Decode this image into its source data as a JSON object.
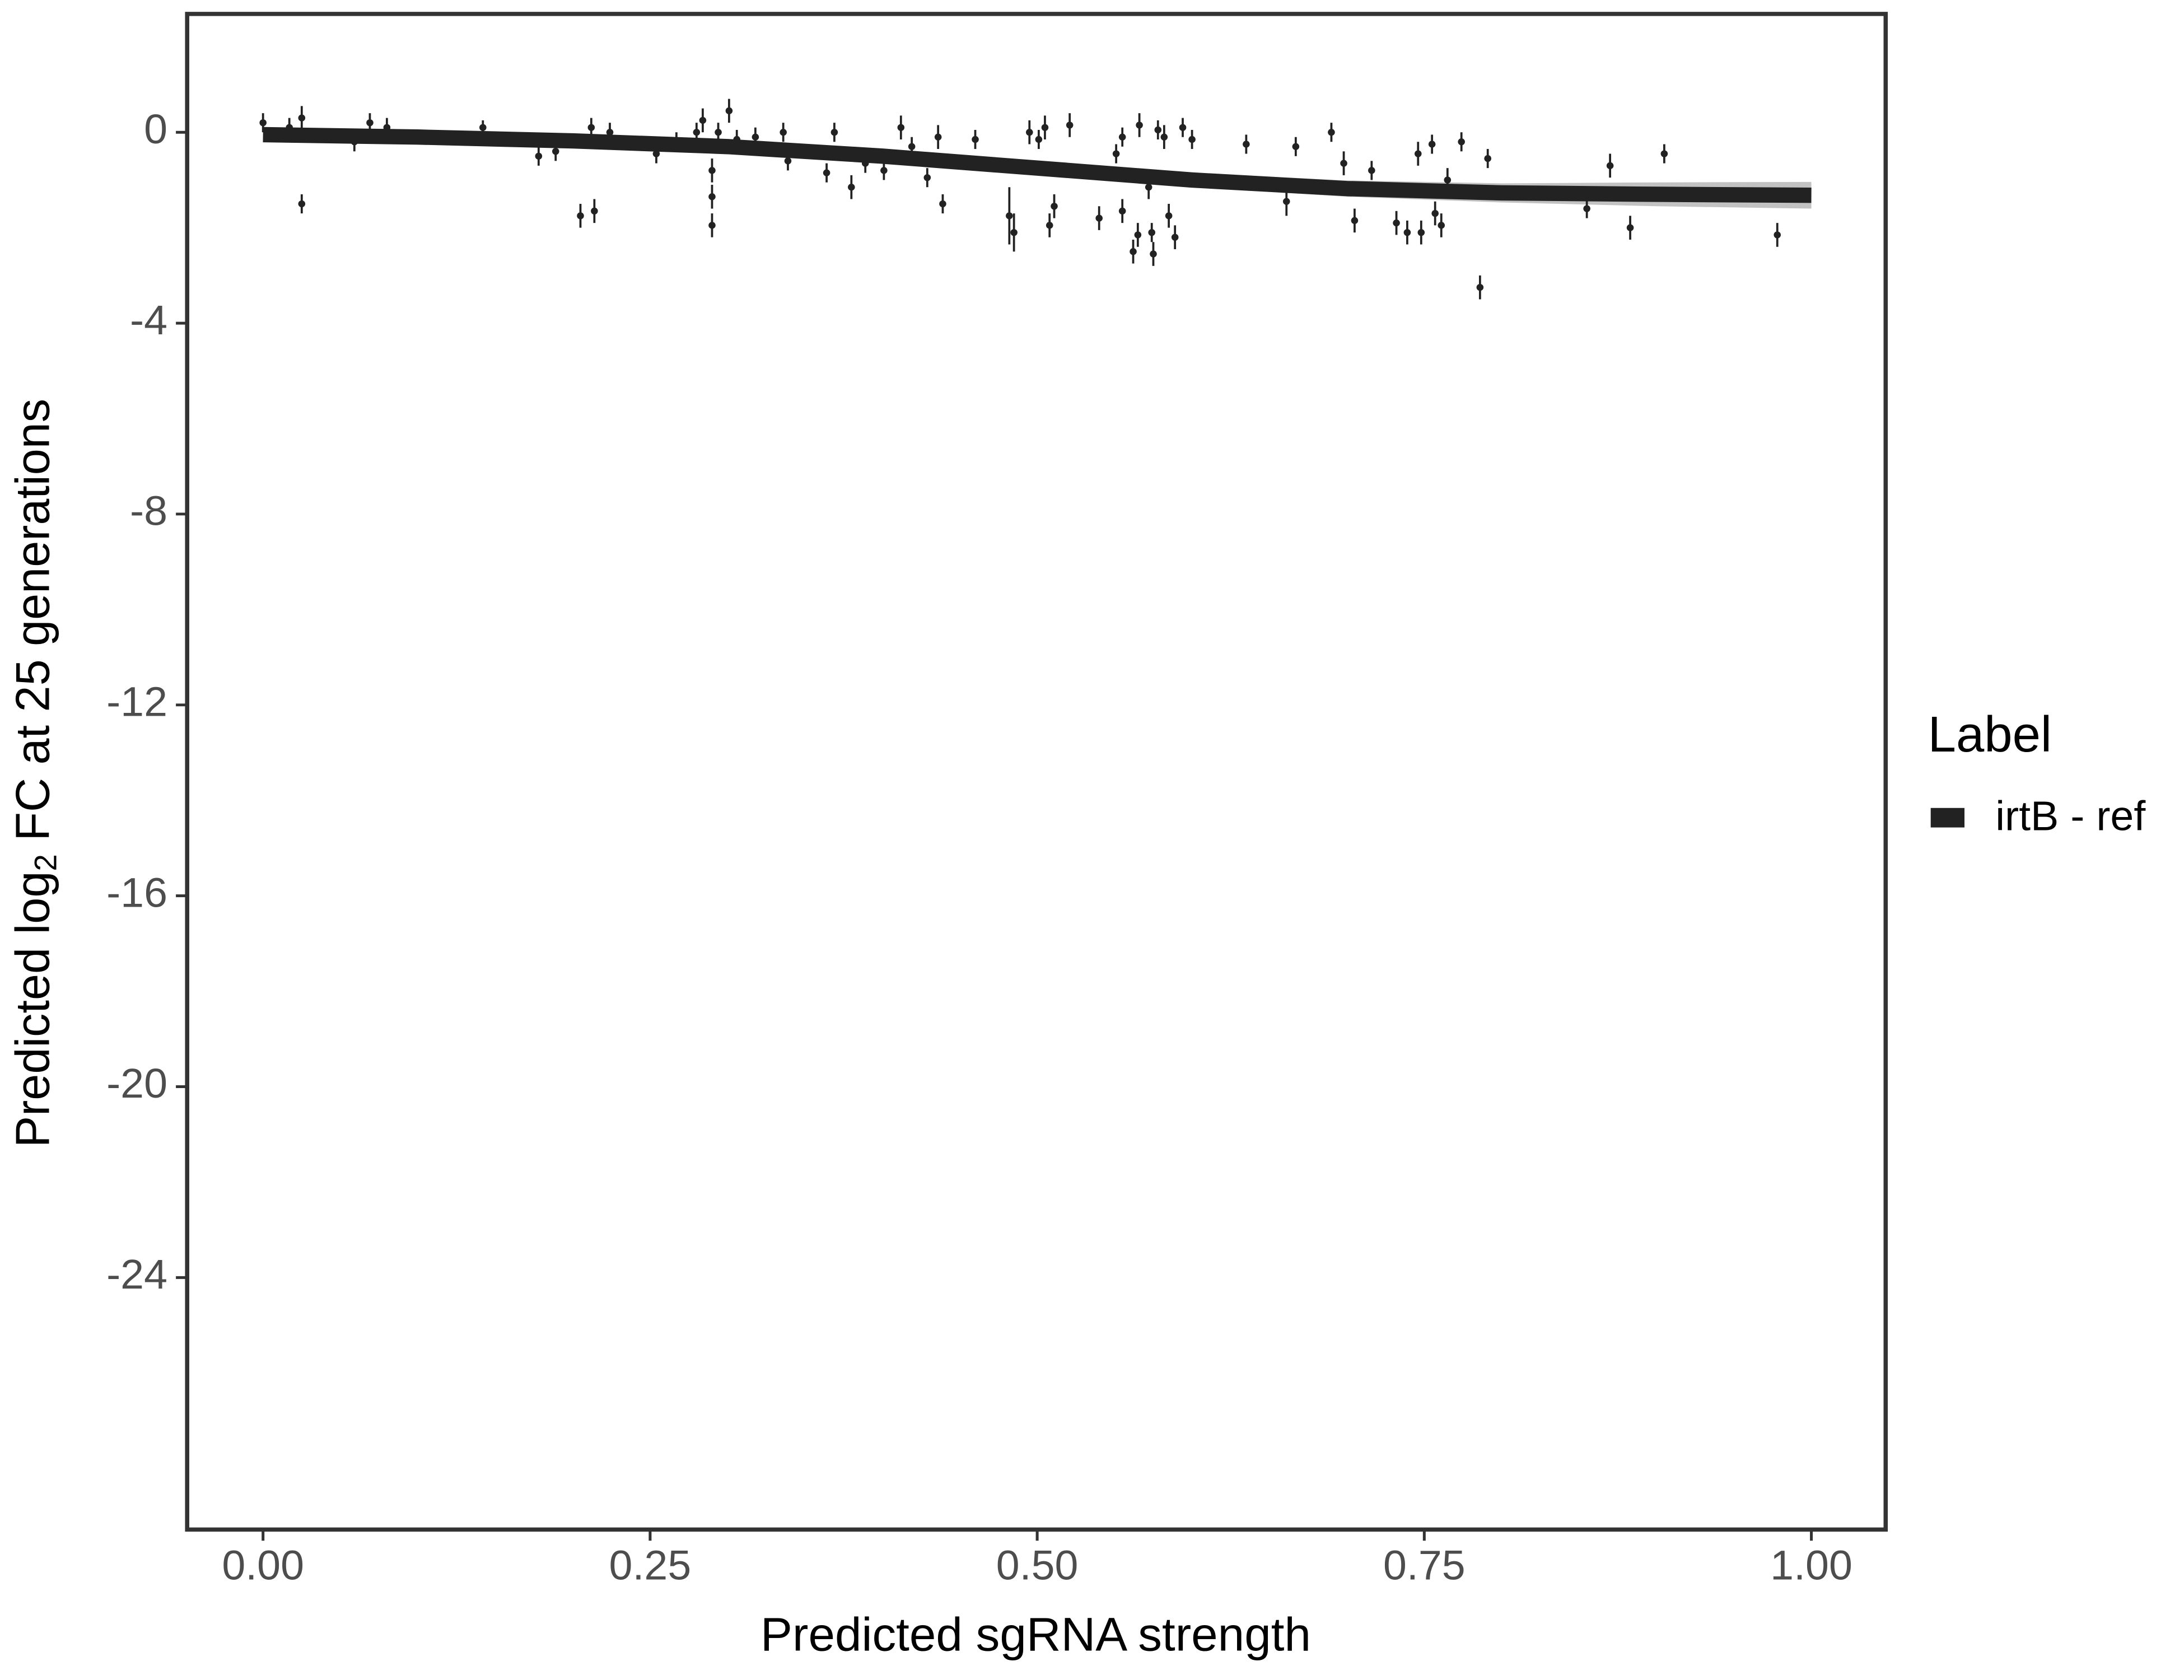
{
  "chart_data": {
    "type": "scatter",
    "xlabel": "Predicted sgRNA strength",
    "ylabel": {
      "prefix": "Predicted  log",
      "sub": "2",
      "suffix": " FC at 25 generations"
    },
    "xlim": [
      -0.049,
      1.048
    ],
    "ylim": [
      -29.28,
      2.48
    ],
    "xticks": [
      {
        "value": 0,
        "label": "0.00"
      },
      {
        "value": 0.25,
        "label": "0.25"
      },
      {
        "value": 0.5,
        "label": "0.50"
      },
      {
        "value": 0.75,
        "label": "0.75"
      },
      {
        "value": 1,
        "label": "1.00"
      }
    ],
    "yticks": [
      0,
      -4,
      -8,
      -12,
      -16,
      -20,
      -24
    ],
    "legend_title": "Label",
    "series": [
      {
        "name": "irtB - ref",
        "color": "#222222",
        "x": [
          0.0,
          0.017,
          0.025,
          0.025,
          0.059,
          0.069,
          0.08,
          0.142,
          0.178,
          0.189,
          0.205,
          0.212,
          0.214,
          0.224,
          0.254,
          0.267,
          0.28,
          0.284,
          0.29,
          0.29,
          0.29,
          0.294,
          0.301,
          0.306,
          0.318,
          0.336,
          0.339,
          0.364,
          0.369,
          0.38,
          0.389,
          0.401,
          0.412,
          0.419,
          0.429,
          0.436,
          0.439,
          0.46,
          0.482,
          0.485,
          0.495,
          0.501,
          0.505,
          0.508,
          0.511,
          0.521,
          0.54,
          0.551,
          0.555,
          0.555,
          0.562,
          0.566,
          0.565,
          0.572,
          0.574,
          0.575,
          0.578,
          0.582,
          0.585,
          0.589,
          0.594,
          0.6,
          0.635,
          0.661,
          0.667,
          0.69,
          0.698,
          0.705,
          0.716,
          0.732,
          0.739,
          0.746,
          0.748,
          0.755,
          0.757,
          0.761,
          0.765,
          0.774,
          0.786,
          0.791,
          0.855,
          0.87,
          0.883,
          0.905,
          0.978
        ],
        "values": [
          0.2,
          0.1,
          0.3,
          -1.5,
          -0.2,
          0.2,
          0.1,
          0.1,
          -0.5,
          -0.4,
          -1.75,
          0.1,
          -1.65,
          0.0,
          -0.45,
          -0.2,
          0.0,
          0.25,
          -0.8,
          -1.35,
          -1.95,
          0.0,
          0.45,
          -0.15,
          -0.1,
          0.0,
          -0.6,
          -0.85,
          0.0,
          -1.15,
          -0.65,
          -0.8,
          0.1,
          -0.3,
          -0.95,
          -0.1,
          -1.5,
          -0.15,
          -1.75,
          -2.1,
          0.0,
          -0.15,
          0.1,
          -1.95,
          -1.55,
          0.15,
          -1.8,
          -0.45,
          -0.1,
          -1.65,
          -2.5,
          0.15,
          -2.15,
          -1.15,
          -2.1,
          -2.55,
          0.05,
          -0.1,
          -1.75,
          -2.2,
          0.1,
          -0.15,
          -0.25,
          -1.45,
          -0.3,
          0.0,
          -0.65,
          -1.85,
          -0.8,
          -1.9,
          -2.1,
          -0.45,
          -2.1,
          -0.25,
          -1.7,
          -1.95,
          -1.0,
          -0.2,
          -3.25,
          -0.55,
          -1.6,
          -0.7,
          -2.0,
          -0.45,
          -2.15
        ],
        "errors": [
          0.2,
          0.2,
          0.25,
          0.2,
          0.2,
          0.2,
          0.2,
          0.15,
          0.2,
          0.2,
          0.25,
          0.2,
          0.25,
          0.2,
          0.2,
          0.2,
          0.2,
          0.25,
          0.25,
          0.25,
          0.25,
          0.2,
          0.25,
          0.2,
          0.2,
          0.2,
          0.2,
          0.2,
          0.2,
          0.25,
          0.2,
          0.2,
          0.25,
          0.2,
          0.2,
          0.25,
          0.2,
          0.2,
          0.6,
          0.4,
          0.25,
          0.2,
          0.25,
          0.25,
          0.25,
          0.25,
          0.25,
          0.2,
          0.2,
          0.25,
          0.25,
          0.25,
          0.25,
          0.25,
          0.2,
          0.25,
          0.2,
          0.25,
          0.25,
          0.25,
          0.2,
          0.2,
          0.2,
          0.3,
          0.2,
          0.2,
          0.25,
          0.25,
          0.2,
          0.25,
          0.25,
          0.25,
          0.25,
          0.2,
          0.25,
          0.25,
          0.25,
          0.2,
          0.25,
          0.2,
          0.2,
          0.25,
          0.25,
          0.2,
          0.25
        ]
      }
    ],
    "fit": {
      "x": [
        0,
        0.1,
        0.2,
        0.3,
        0.4,
        0.5,
        0.6,
        0.7,
        0.8,
        0.9,
        1.0
      ],
      "y": [
        -0.05,
        -0.1,
        -0.18,
        -0.3,
        -0.5,
        -0.75,
        -1.0,
        -1.18,
        -1.27,
        -1.3,
        -1.32
      ],
      "lower": [
        -0.2,
        -0.2,
        -0.28,
        -0.4,
        -0.6,
        -0.88,
        -1.15,
        -1.35,
        -1.47,
        -1.55,
        -1.6
      ],
      "upper": [
        0.1,
        0.0,
        -0.08,
        -0.2,
        -0.4,
        -0.62,
        -0.85,
        -1.01,
        -1.07,
        -1.05,
        -1.04
      ]
    }
  }
}
